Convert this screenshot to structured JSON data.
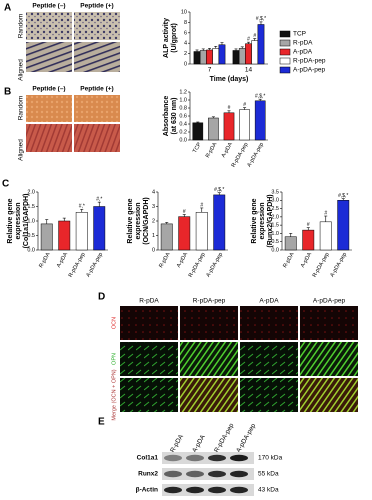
{
  "panel_labels": [
    "A",
    "B",
    "C",
    "D",
    "E"
  ],
  "panel_a_images": {
    "columns": [
      "Peptide (–)",
      "Peptide (+)"
    ],
    "rows": [
      "Random",
      "Aligned"
    ]
  },
  "panel_b_images": {
    "columns": [
      "Peptide (–)",
      "Peptide (+)"
    ],
    "rows": [
      "Random",
      "Aligned"
    ]
  },
  "panel_d_images": {
    "columns": [
      "R-pDA",
      "R-pDA-pep",
      "A-pDA",
      "A-pDA-pep"
    ],
    "rows": [
      "OCN",
      "OPN",
      "Merge (OCN + OPN)"
    ]
  },
  "panel_e_blot": {
    "columns": [
      "R-pDA",
      "A-pDA",
      "R-pDA-pep",
      "A-pDA-pep"
    ],
    "rows": [
      "Col1a1",
      "Runx2",
      "β-Actin"
    ],
    "sizes": [
      "170 kDa",
      "55 kDa",
      "43 kDa"
    ]
  },
  "chart_data": [
    {
      "type": "bar",
      "ylabel": [
        "ALP activity",
        "(U/gprot)"
      ],
      "xlabel": "Time (days)",
      "categories": [
        "7",
        "14"
      ],
      "series": [
        {
          "name": "TCP",
          "color": "#111111",
          "values": [
            2.4,
            2.6
          ],
          "errors": [
            0.3,
            0.3
          ],
          "annotations": [
            null,
            null
          ]
        },
        {
          "name": "R-pDA",
          "color": "#a6a6a6",
          "values": [
            2.6,
            3.0
          ],
          "errors": [
            0.3,
            0.3
          ],
          "annotations": [
            null,
            null
          ]
        },
        {
          "name": "A-pDA",
          "color": "#e8262a",
          "values": [
            2.7,
            3.9
          ],
          "errors": [
            0.3,
            0.3
          ],
          "annotations": [
            null,
            "#"
          ]
        },
        {
          "name": "R-pDA-pep",
          "color": "#ffffff",
          "values": [
            3.0,
            4.5
          ],
          "errors": [
            0.4,
            0.4
          ],
          "annotations": [
            null,
            "#"
          ]
        },
        {
          "name": "A-pDA-pep",
          "color": "#1c2bd6",
          "values": [
            3.7,
            7.6
          ],
          "errors": [
            0.4,
            0.5
          ],
          "annotations": [
            null,
            "#,$,*"
          ]
        }
      ],
      "ylim": [
        0,
        10
      ],
      "yticks": [
        0,
        2,
        4,
        6,
        8,
        10
      ],
      "legend": "right"
    },
    {
      "type": "bar",
      "ylabel": [
        "Absorbance",
        "(at 630 nm)"
      ],
      "categories": [
        "TCP",
        "R-pDA",
        "A-pDA",
        "R-pDA-pep",
        "A-pDA-pep"
      ],
      "values": [
        0.43,
        0.55,
        0.68,
        0.76,
        0.98
      ],
      "errors": [
        0.02,
        0.03,
        0.05,
        0.05,
        0.04
      ],
      "colors": [
        "#111111",
        "#a6a6a6",
        "#e8262a",
        "#ffffff",
        "#1c2bd6"
      ],
      "annotations": [
        null,
        null,
        "#",
        "#",
        "#,$,*"
      ],
      "ylim": [
        0,
        1.2
      ],
      "yticks": [
        {
          "value": 0,
          "label": "0.0"
        },
        {
          "value": 0.2,
          "label": "0.2"
        },
        {
          "value": 0.4,
          "label": "0.4"
        },
        {
          "value": 0.6,
          "label": "0.6"
        },
        {
          "value": 0.8,
          "label": "0.8"
        },
        {
          "value": 1,
          "label": "1.0"
        },
        {
          "value": 1.2,
          "label": "1.2"
        }
      ]
    },
    {
      "type": "bar",
      "ylabel": [
        "Relative gene",
        "expression",
        "(Col1a1/GAPDH)"
      ],
      "categories": [
        "R-pDA",
        "A-pDA",
        "R-pDA-pep",
        "A-pDA-pep"
      ],
      "values": [
        0.9,
        1.0,
        1.3,
        1.5
      ],
      "errors": [
        0.15,
        0.1,
        0.1,
        0.15
      ],
      "colors": [
        "#a6a6a6",
        "#e8262a",
        "#ffffff",
        "#1c2bd6"
      ],
      "annotations": [
        null,
        null,
        "#,*",
        "#,*"
      ],
      "ylim": [
        0,
        2
      ],
      "yticks": [
        {
          "value": 0,
          "label": "0.0"
        },
        {
          "value": 0.5,
          "label": "0.5"
        },
        {
          "value": 1,
          "label": "1.0"
        },
        {
          "value": 1.5,
          "label": "1.5"
        },
        {
          "value": 2,
          "label": "2.0"
        }
      ]
    },
    {
      "type": "bar",
      "ylabel": [
        "Relative gene",
        "expression",
        "(OCN/GAPDH)"
      ],
      "categories": [
        "R-pDA",
        "A-pDA",
        "R-pDA-pep",
        "A-pDA-pep"
      ],
      "values": [
        1.8,
        2.3,
        2.6,
        3.8
      ],
      "errors": [
        0.1,
        0.15,
        0.3,
        0.15
      ],
      "colors": [
        "#a6a6a6",
        "#e8262a",
        "#ffffff",
        "#1c2bd6"
      ],
      "annotations": [
        null,
        "#",
        "#",
        "#,$,*"
      ],
      "ylim": [
        0,
        4
      ],
      "yticks": [
        0,
        1,
        2,
        3,
        4
      ]
    },
    {
      "type": "bar",
      "ylabel": [
        "Relative gene",
        "expression",
        "(Runx2/GAPDH)"
      ],
      "categories": [
        "R-pDA",
        "A-pDA",
        "R-pDA-pep",
        "A-pDA-pep"
      ],
      "values": [
        0.8,
        1.2,
        1.7,
        3.0
      ],
      "errors": [
        0.2,
        0.15,
        0.35,
        0.1
      ],
      "colors": [
        "#a6a6a6",
        "#e8262a",
        "#ffffff",
        "#1c2bd6"
      ],
      "annotations": [
        null,
        "#",
        "#",
        "#,$,*"
      ],
      "ylim": [
        0,
        3.5
      ],
      "yticks": [
        {
          "value": 0,
          "label": "0.0"
        },
        {
          "value": 0.5,
          "label": "0.5"
        },
        {
          "value": 1,
          "label": "1.0"
        },
        {
          "value": 1.5,
          "label": "1.5"
        },
        {
          "value": 2,
          "label": "2.0"
        },
        {
          "value": 2.5,
          "label": "2.5"
        },
        {
          "value": 3,
          "label": "3.0"
        },
        {
          "value": 3.5,
          "label": "3.5"
        }
      ]
    }
  ]
}
